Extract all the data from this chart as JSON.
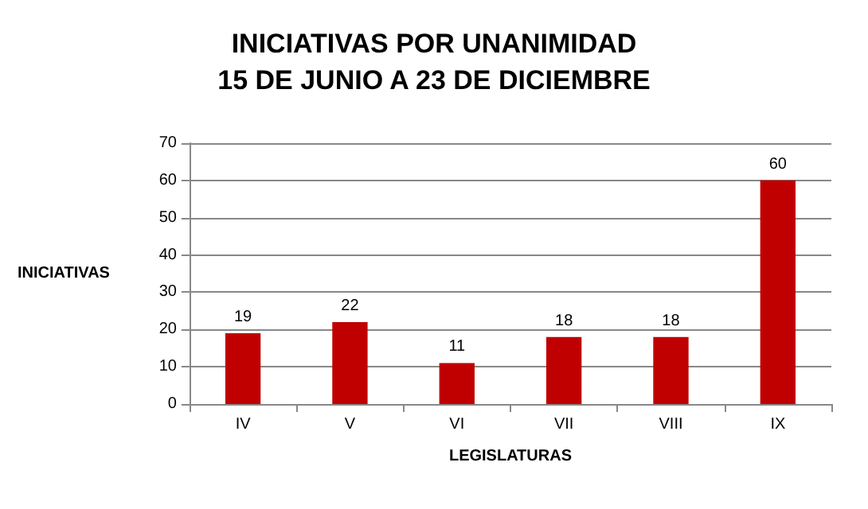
{
  "chart_data": {
    "type": "bar",
    "title": "INICIATIVAS POR UNANIMIDAD",
    "subtitle": "15 DE JUNIO A 23 DE DICIEMBRE",
    "xlabel": "LEGISLATURAS",
    "ylabel": "INICIATIVAS",
    "categories": [
      "IV",
      "V",
      "VI",
      "VII",
      "VIII",
      "IX"
    ],
    "values": [
      19,
      22,
      11,
      18,
      18,
      60
    ],
    "color": "#c00000",
    "ylim": [
      0,
      70
    ],
    "yticks": [
      0,
      10,
      20,
      30,
      40,
      50,
      60,
      70
    ],
    "grid": "y",
    "data_labels": true
  }
}
